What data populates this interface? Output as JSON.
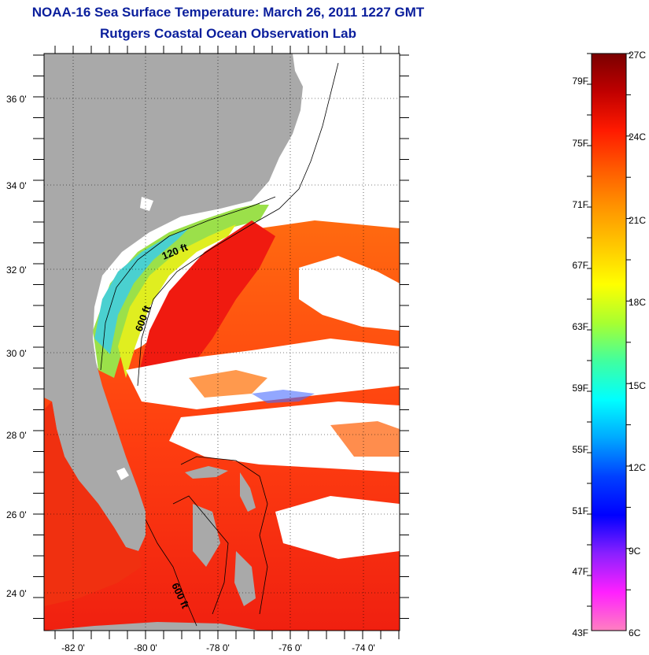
{
  "title": "NOAA-16 Sea Surface Temperature:  March 26, 2011 1227 GMT",
  "subtitle": "Rutgers Coastal Ocean Observation Lab",
  "map": {
    "lat_labels": [
      "36 0'",
      "34 0'",
      "32 0'",
      "30 0'",
      "28 0'",
      "26 0'",
      "24 0'"
    ],
    "lon_labels": [
      "-82 0'",
      "-80 0'",
      "-78 0'",
      "-76 0'",
      "-74 0'"
    ],
    "contour_labels": [
      "120 ft",
      "600 ft",
      "600 ft"
    ],
    "land_color": "#a9a9a9",
    "cloud_color": "#ffffff"
  },
  "colorbar": {
    "fahrenheit_labels": [
      "79F",
      "75F",
      "71F",
      "67F",
      "63F",
      "59F",
      "55F",
      "51F",
      "47F",
      "43F"
    ],
    "celsius_labels": [
      "27C",
      "24C",
      "21C",
      "18C",
      "15C",
      "12C",
      "9C",
      "6C"
    ],
    "colors": [
      "#7a0000",
      "#c00000",
      "#ff1a00",
      "#ff5a00",
      "#ff9400",
      "#ffc800",
      "#ffff00",
      "#a8ff30",
      "#40ffa0",
      "#00ffff",
      "#00a8ff",
      "#0040ff",
      "#0000ff",
      "#8a20ff",
      "#ff20ff",
      "#ff80c0"
    ]
  }
}
